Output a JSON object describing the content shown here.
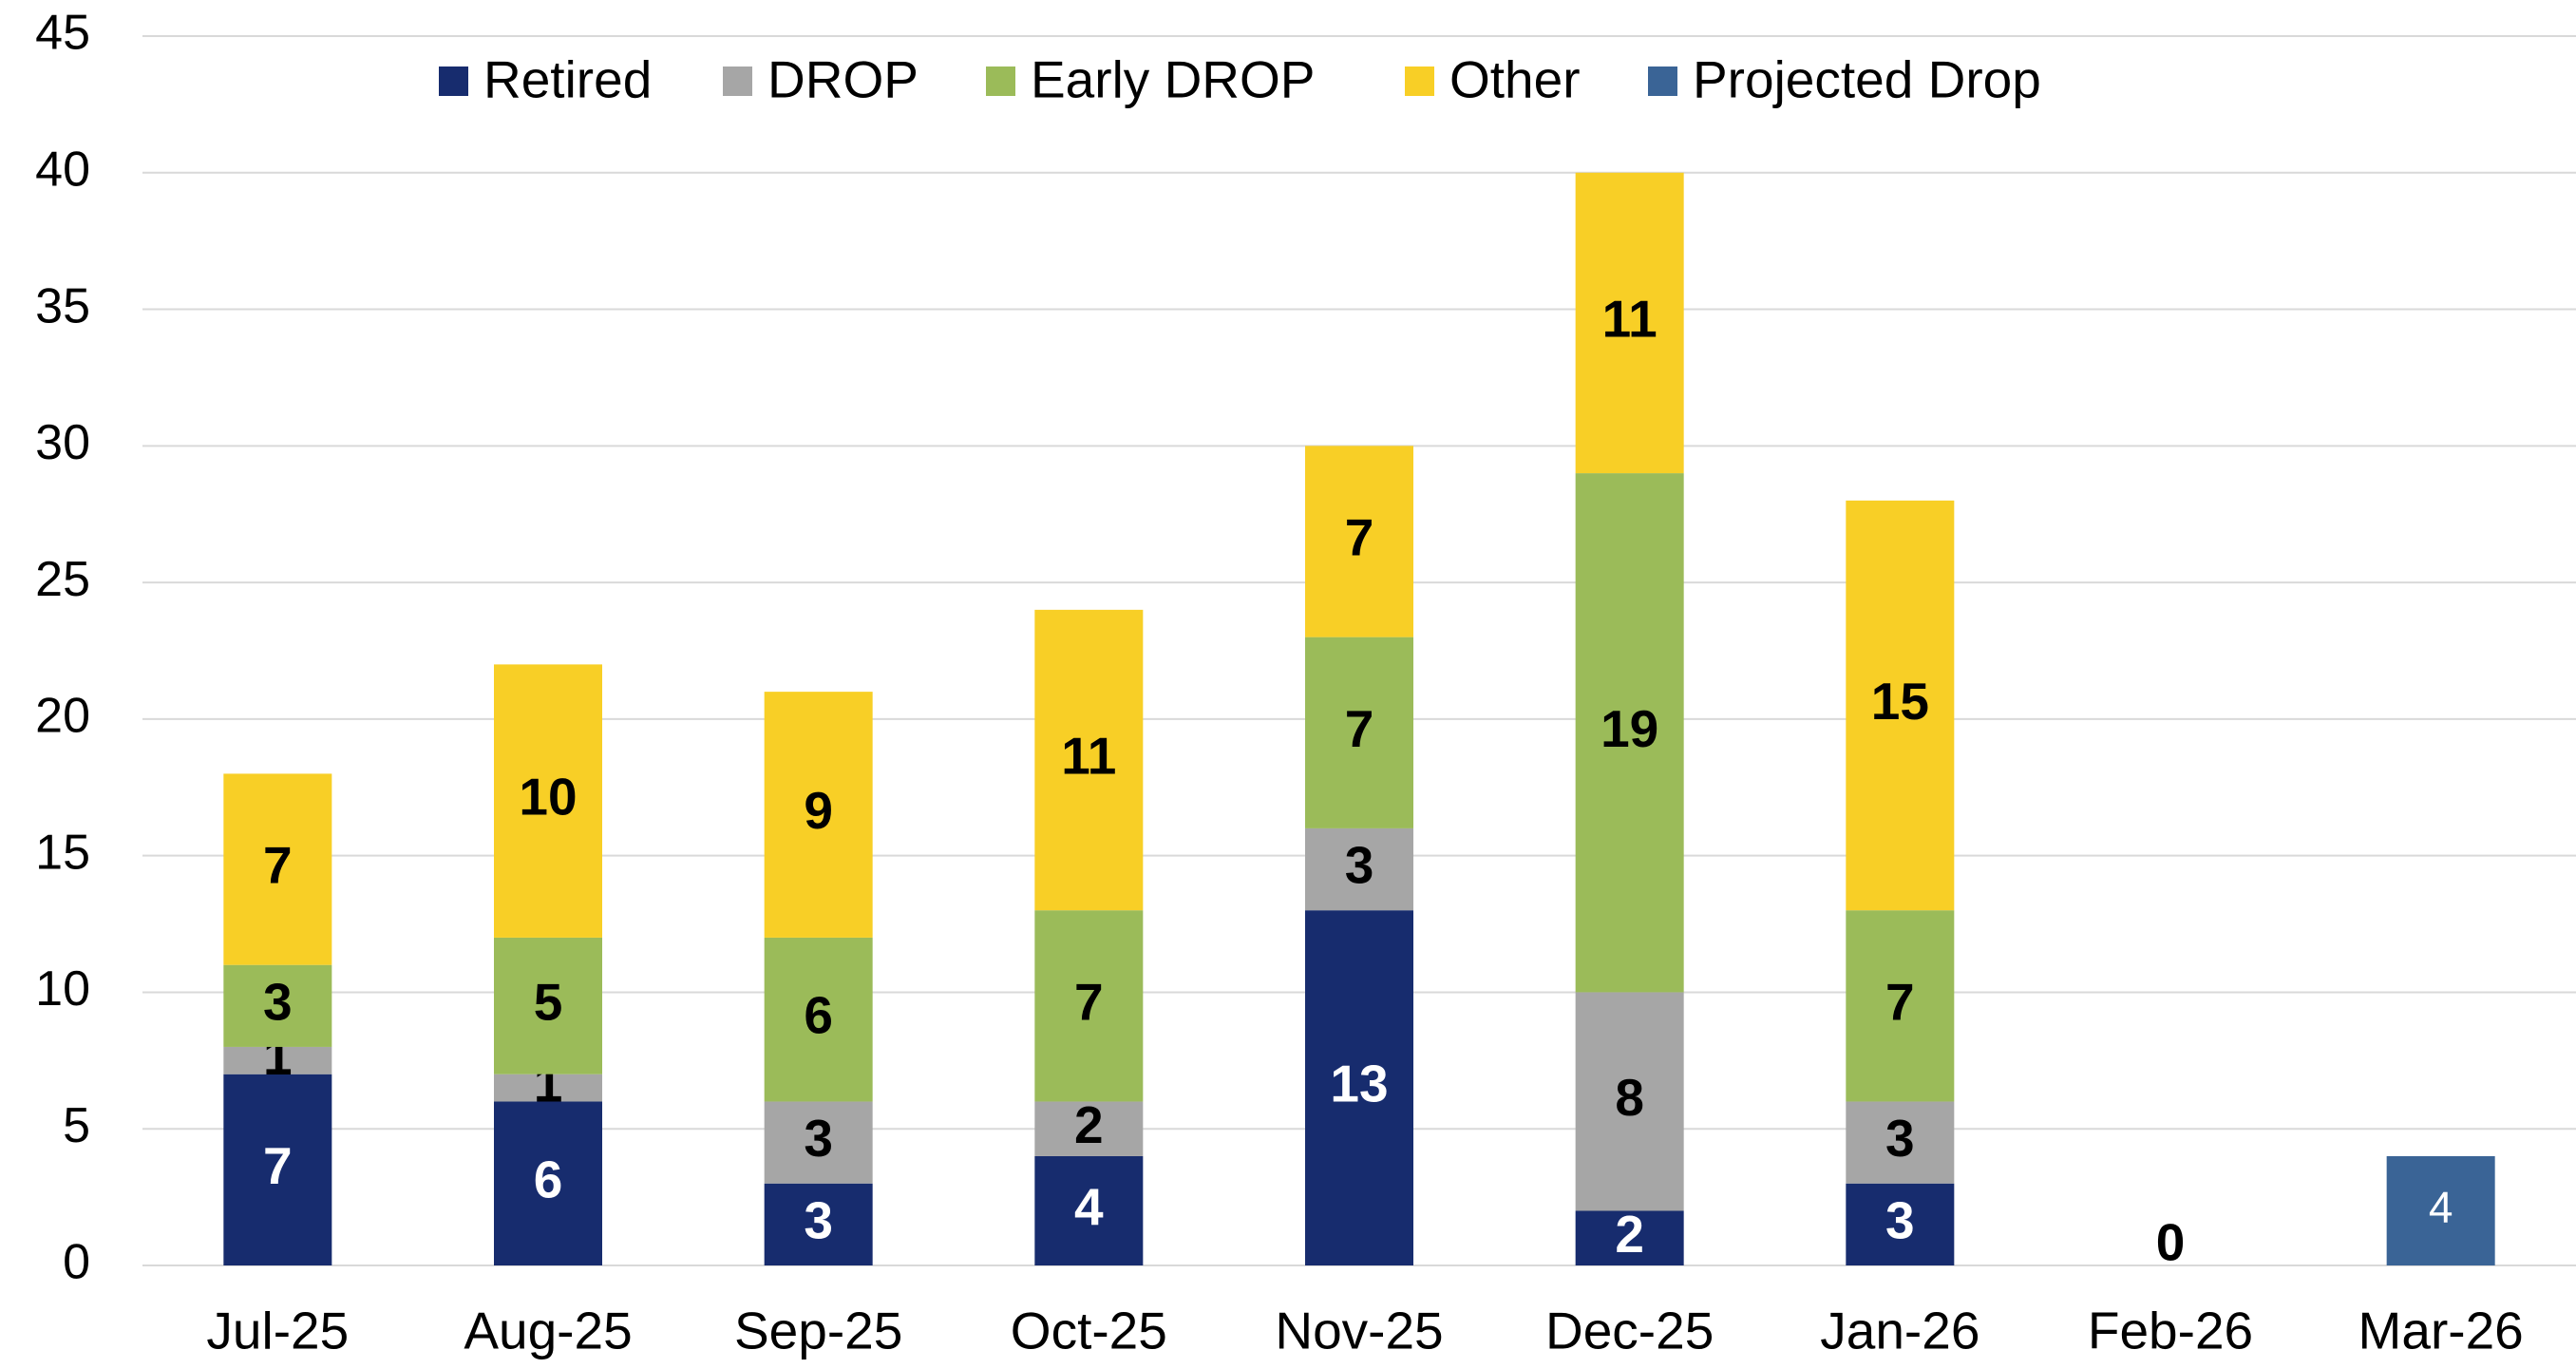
{
  "chart_data": {
    "type": "stacked_bar",
    "categories": [
      "Jul-25",
      "Aug-25",
      "Sep-25",
      "Oct-25",
      "Nov-25",
      "Dec-25",
      "Jan-26",
      "Feb-26",
      "Mar-26"
    ],
    "series": [
      {
        "name": "Retired",
        "color": "#172c6e",
        "values": [
          7,
          6,
          3,
          4,
          13,
          2,
          3,
          0,
          null
        ]
      },
      {
        "name": "DROP",
        "color": "#a6a6a6",
        "values": [
          1,
          1,
          3,
          2,
          3,
          8,
          3,
          0,
          null
        ]
      },
      {
        "name": "Early DROP",
        "color": "#9bbb59",
        "values": [
          3,
          5,
          6,
          7,
          7,
          19,
          7,
          null,
          null
        ]
      },
      {
        "name": "Other",
        "color": "#f8cf26",
        "values": [
          7,
          10,
          9,
          11,
          7,
          11,
          15,
          null,
          null
        ]
      },
      {
        "name": "Projected Drop",
        "color": "#3a6496",
        "values": [
          null,
          null,
          null,
          null,
          null,
          null,
          null,
          null,
          4
        ]
      }
    ],
    "ylim": [
      0,
      45
    ],
    "yticks": [
      0,
      5,
      10,
      15,
      20,
      25,
      30,
      35,
      40,
      45
    ],
    "grid": true,
    "legend": "top"
  }
}
